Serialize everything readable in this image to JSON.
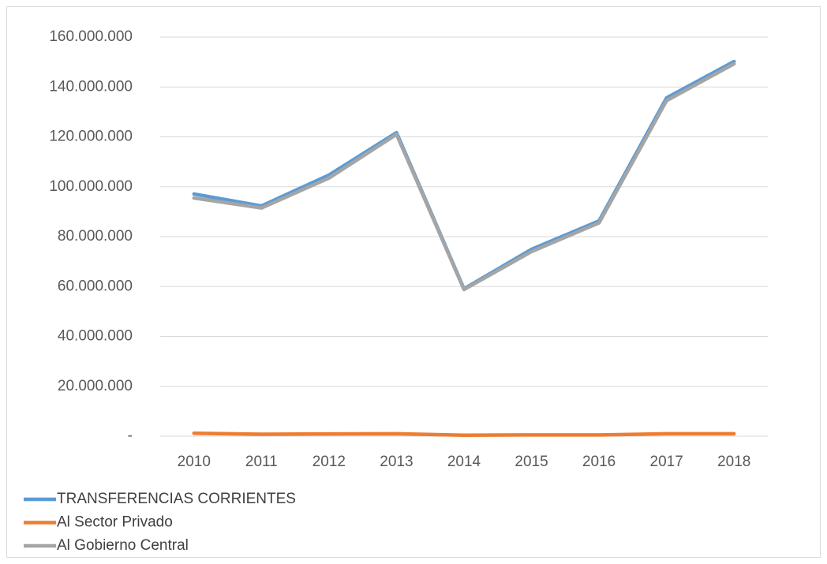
{
  "chart_data": {
    "type": "line",
    "categories": [
      "2010",
      "2011",
      "2012",
      "2013",
      "2014",
      "2015",
      "2016",
      "2017",
      "2018"
    ],
    "series": [
      {
        "name": "TRANSFERENCIAS CORRIENTES",
        "color": "#5b9bd5",
        "values": [
          97100000,
          92300000,
          104700000,
          121700000,
          59100000,
          74900000,
          86300000,
          135600000,
          150200000
        ]
      },
      {
        "name": "Al Sector Privado",
        "color": "#ed7d31",
        "values": [
          1200000,
          800000,
          900000,
          1000000,
          400000,
          500000,
          500000,
          1000000,
          1000000
        ]
      },
      {
        "name": "Al Gobierno Central",
        "color": "#a5a5a5",
        "values": [
          95500000,
          91500000,
          103500000,
          121000000,
          58800000,
          74000000,
          85500000,
          134500000,
          149300000
        ]
      }
    ],
    "ylim": [
      0,
      160000000
    ],
    "yticks": [
      {
        "value": 0,
        "label": "-"
      },
      {
        "value": 20000000,
        "label": "20.000.000"
      },
      {
        "value": 40000000,
        "label": "40.000.000"
      },
      {
        "value": 60000000,
        "label": "60.000.000"
      },
      {
        "value": 80000000,
        "label": "80.000.000"
      },
      {
        "value": 100000000,
        "label": "100.000.000"
      },
      {
        "value": 120000000,
        "label": "120.000.000"
      },
      {
        "value": 140000000,
        "label": "140.000.000"
      },
      {
        "value": 160000000,
        "label": "160.000.000"
      }
    ],
    "grid": true,
    "legend": "bottom-left"
  }
}
